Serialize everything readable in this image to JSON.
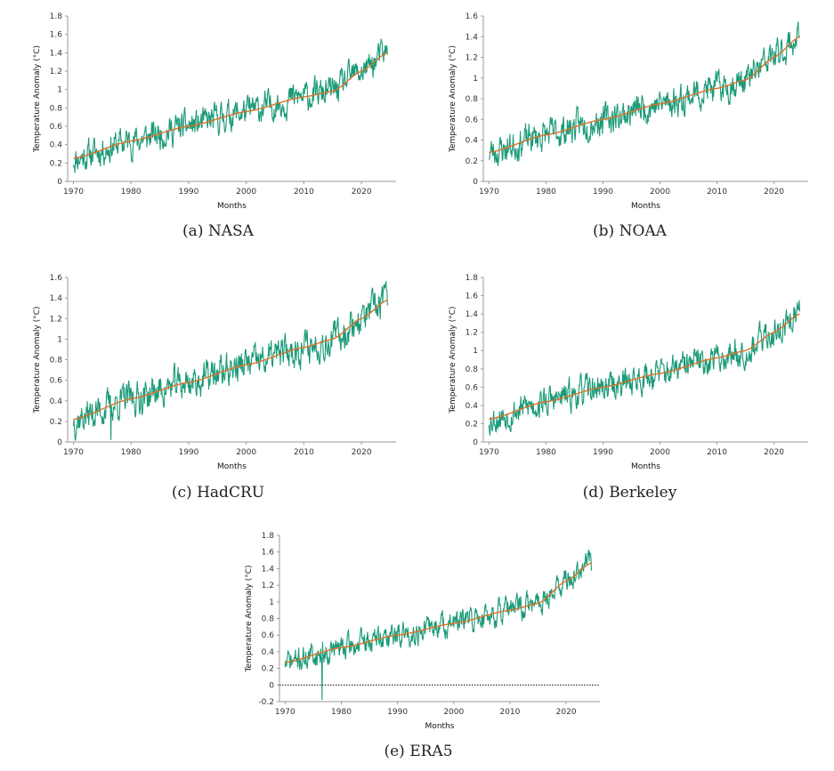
{
  "colors": {
    "raw": "#1a9a78",
    "trend": "#d9742a",
    "axis": "#999999",
    "zero": "#000000"
  },
  "chart_data": [
    {
      "type": "line",
      "caption": "(a) NASA",
      "xlabel": "Months",
      "ylabel": "Temperature Anomaly (°C)",
      "xlim": [
        1969,
        2026
      ],
      "ylim": [
        0,
        1.8
      ],
      "xticks": [
        1970,
        1980,
        1990,
        2000,
        2010,
        2020
      ],
      "yticks": [
        0,
        0.2,
        0.4,
        0.6,
        0.8,
        1,
        1.2,
        1.4,
        1.6,
        1.8
      ],
      "ytick_labels": [
        "0",
        "0.2",
        "0.4",
        "0.6",
        "0.8",
        "1",
        "1.2",
        "1.4",
        "1.6",
        "1.8"
      ],
      "trend": {
        "x": [
          1970,
          1980,
          1990,
          2000,
          2010,
          2015,
          2020,
          2024.5
        ],
        "y": [
          0.25,
          0.44,
          0.6,
          0.76,
          0.92,
          0.98,
          1.2,
          1.4
        ]
      },
      "raw_seed": 11,
      "raw_noise": 0.13,
      "raw_spikes": []
    },
    {
      "type": "line",
      "caption": "(b) NOAA",
      "xlabel": "Months",
      "ylabel": "Temperature Anomaly (°C)",
      "xlim": [
        1969,
        2026
      ],
      "ylim": [
        0,
        1.6
      ],
      "xticks": [
        1970,
        1980,
        1990,
        2000,
        2010,
        2020
      ],
      "yticks": [
        0,
        0.2,
        0.4,
        0.6,
        0.8,
        1,
        1.2,
        1.4,
        1.6
      ],
      "ytick_labels": [
        "0",
        "0.2",
        "0.4",
        "0.6",
        "0.8",
        "1",
        "1.2",
        "1.4",
        "1.6"
      ],
      "trend": {
        "x": [
          1970,
          1980,
          1990,
          2000,
          2010,
          2015,
          2020,
          2024.5
        ],
        "y": [
          0.28,
          0.45,
          0.6,
          0.75,
          0.9,
          0.98,
          1.2,
          1.4
        ]
      },
      "raw_seed": 23,
      "raw_noise": 0.12,
      "raw_spikes": []
    },
    {
      "type": "line",
      "caption": "(c) HadCRU",
      "xlabel": "Months",
      "ylabel": "Temperature Anomaly (°C)",
      "xlim": [
        1969,
        2026
      ],
      "ylim": [
        0,
        1.6
      ],
      "xticks": [
        1970,
        1980,
        1990,
        2000,
        2010,
        2020
      ],
      "yticks": [
        0,
        0.2,
        0.4,
        0.6,
        0.8,
        1,
        1.2,
        1.4,
        1.6
      ],
      "ytick_labels": [
        "0",
        "0.2",
        "0.4",
        "0.6",
        "0.8",
        "1",
        "1.2",
        "1.4",
        "1.6"
      ],
      "trend": {
        "x": [
          1970,
          1980,
          1990,
          2000,
          2010,
          2015,
          2020,
          2024.5
        ],
        "y": [
          0.22,
          0.42,
          0.58,
          0.75,
          0.92,
          1.0,
          1.2,
          1.38
        ]
      },
      "raw_seed": 37,
      "raw_noise": 0.13,
      "raw_spikes": [
        [
          1976.5,
          0.02
        ]
      ]
    },
    {
      "type": "line",
      "caption": "(d) Berkeley",
      "xlabel": "Months",
      "ylabel": "Temperature Anomaly (°C)",
      "xlim": [
        1969,
        2026
      ],
      "ylim": [
        0,
        1.8
      ],
      "xticks": [
        1970,
        1980,
        1990,
        2000,
        2010,
        2020
      ],
      "yticks": [
        0,
        0.2,
        0.4,
        0.6,
        0.8,
        1,
        1.2,
        1.4,
        1.6,
        1.8
      ],
      "ytick_labels": [
        "0",
        "0.2",
        "0.4",
        "0.6",
        "0.8",
        "1",
        "1.2",
        "1.4",
        "1.6",
        "1.8"
      ],
      "trend": {
        "x": [
          1970,
          1980,
          1990,
          2000,
          2010,
          2015,
          2020,
          2024.5
        ],
        "y": [
          0.25,
          0.44,
          0.6,
          0.75,
          0.92,
          1.0,
          1.2,
          1.4
        ]
      },
      "raw_seed": 53,
      "raw_noise": 0.13,
      "raw_spikes": []
    },
    {
      "type": "line",
      "caption": "(e) ERA5",
      "xlabel": "Months",
      "ylabel": "Temperature Anomaly (°C)",
      "xlim": [
        1969,
        2026
      ],
      "ylim": [
        -0.2,
        1.8
      ],
      "xticks": [
        1970,
        1980,
        1990,
        2000,
        2010,
        2020
      ],
      "yticks": [
        -0.2,
        0,
        0.2,
        0.4,
        0.6,
        0.8,
        1,
        1.2,
        1.4,
        1.6,
        1.8
      ],
      "ytick_labels": [
        "-0.2",
        "0",
        "0.2",
        "0.4",
        "0.6",
        "0.8",
        "1",
        "1.2",
        "1.4",
        "1.6",
        "1.8"
      ],
      "zero_line": true,
      "trend": {
        "x": [
          1970,
          1980,
          1990,
          2000,
          2010,
          2015,
          2020,
          2024.5
        ],
        "y": [
          0.27,
          0.45,
          0.6,
          0.74,
          0.9,
          0.98,
          1.25,
          1.47
        ]
      },
      "raw_seed": 71,
      "raw_noise": 0.12,
      "raw_spikes": [
        [
          1976.6,
          -0.18
        ]
      ]
    }
  ]
}
